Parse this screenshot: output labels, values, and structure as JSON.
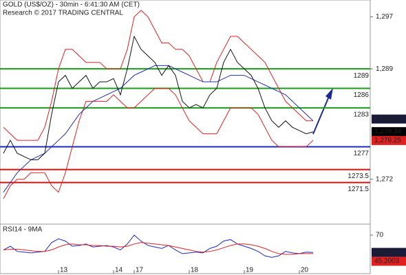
{
  "header": {
    "title": "GOLD (US$/OZ) - 30min - 6:41:30 AM (CET)",
    "subtitle": "Research © 2017 TRADING CENTRAL"
  },
  "chart_data": [
    {
      "type": "line",
      "categories": [
        null,
        null,
        null,
        null,
        null,
        null,
        null,
        null,
        "13",
        null,
        null,
        null,
        null,
        null,
        null,
        null,
        "14",
        null,
        null,
        "17",
        null,
        null,
        null,
        null,
        null,
        null,
        null,
        "18",
        null,
        null,
        null,
        null,
        null,
        null,
        null,
        "19",
        null,
        null,
        null,
        null,
        null,
        null,
        null,
        "20",
        null,
        null
      ],
      "series": [
        {
          "color": "#e02020",
          "values": [
            1280,
            1279,
            1278,
            1278,
            1278,
            1278,
            1280,
            1284,
            1289,
            1292,
            1292,
            1291,
            1290,
            1290,
            1290,
            1289,
            1289,
            1289,
            1292,
            1297,
            1298,
            1297,
            1295,
            1293,
            1293,
            1292,
            1292,
            1291,
            1289,
            1287,
            1287,
            1290,
            1292,
            1294,
            1294,
            1293,
            1292,
            1291,
            1290,
            1288,
            1286,
            1284,
            1283,
            1282,
            1281,
            1281
          ]
        },
        {
          "color": "#e02020",
          "values": [
            1269,
            1271,
            1272,
            1272,
            1273,
            1273,
            1273,
            1271,
            1270,
            1273,
            1277,
            1281,
            1284,
            1284,
            1284,
            1284,
            1285,
            1284,
            1283,
            1283,
            1284,
            1285,
            1286,
            1286,
            1286,
            1285,
            1283,
            1281,
            1280,
            1279,
            1279,
            1279,
            1281,
            1283,
            1283,
            1283,
            1283,
            1282,
            1280,
            1278,
            1277,
            1277,
            1277,
            1277,
            1277,
            1278
          ]
        },
        {
          "color": "#2030b0",
          "values": [
            1270,
            1271.5,
            1273,
            1274,
            1275,
            1275.5,
            1276,
            1277,
            1278,
            1279,
            1280.5,
            1282,
            1283,
            1284,
            1284.5,
            1285,
            1285.5,
            1286,
            1287,
            1288,
            1288.5,
            1289,
            1289.5,
            1289.5,
            1289.5,
            1289,
            1288.5,
            1288,
            1287.5,
            1287,
            1287,
            1287,
            1287.5,
            1288,
            1288,
            1288,
            1287.5,
            1287,
            1286.5,
            1286,
            1285.5,
            1285,
            1284,
            1283,
            1282,
            1281
          ]
        },
        {
          "color": "#111111",
          "values": [
            1276,
            1278,
            1276,
            1275.5,
            1275,
            1275,
            1276,
            1282,
            1287,
            1288,
            1286,
            1287,
            1288,
            1286,
            1287,
            1287,
            1287.5,
            1285,
            1289,
            1294,
            1292,
            1291,
            1290,
            1288,
            1289.5,
            1288,
            1284,
            1283,
            1283.5,
            1283,
            1285,
            1286,
            1290,
            1292,
            1290,
            1289,
            1288,
            1286,
            1283,
            1281,
            1280,
            1281,
            1280,
            1279.5,
            1279,
            1279.3
          ]
        }
      ],
      "ylim": [
        1265.2,
        1299.6
      ],
      "yticks": [
        {
          "value": 1297,
          "label": "1,297"
        },
        {
          "value": 1289,
          "label": "1,289"
        },
        {
          "value": 1272,
          "label": "1,272"
        }
      ],
      "levels": [
        {
          "value": 1289,
          "label": "1289",
          "color": "#1a9a1a"
        },
        {
          "value": 1286,
          "label": "1286",
          "color": "#1a9a1a"
        },
        {
          "value": 1283,
          "label": "1283",
          "color": "#1a9a1a"
        },
        {
          "value": 1277,
          "label": "1277",
          "color": "#1a2ac0"
        },
        {
          "value": 1273.5,
          "label": "1273.5",
          "color": "#d01010"
        },
        {
          "value": 1271.5,
          "label": "1271.5",
          "color": "#d01010"
        }
      ],
      "tags": [
        {
          "value": 1281.27,
          "label": "1,281.27",
          "color": "#1a1a3a"
        },
        {
          "value": 1279.34,
          "label": "1,279.34",
          "color": "#000000"
        },
        {
          "value": 1279.25,
          "label": "1,279.25",
          "color": "#e02020"
        }
      ]
    },
    {
      "type": "line",
      "title": "RSI14 - 9MA",
      "series": [
        {
          "color": "#1a2ac0",
          "values": [
            50,
            55,
            48,
            47,
            46,
            47,
            48,
            60,
            65,
            62,
            55,
            56,
            58,
            54,
            55,
            56,
            54,
            50,
            58,
            70,
            62,
            56,
            54,
            52,
            56,
            50,
            45,
            46,
            47,
            46,
            52,
            55,
            62,
            64,
            58,
            55,
            52,
            48,
            42,
            40,
            42,
            48,
            46,
            45,
            47,
            46.7
          ]
        },
        {
          "color": "#e02020",
          "values": [
            50,
            51,
            51,
            50,
            49,
            48,
            48,
            50,
            54,
            57,
            58,
            57,
            57,
            56,
            56,
            55,
            55,
            54,
            55,
            58,
            60,
            59,
            58,
            57,
            56,
            54,
            52,
            50,
            48,
            47,
            48,
            50,
            53,
            56,
            58,
            58,
            57,
            55,
            52,
            48,
            45,
            44,
            44,
            45,
            45,
            45.2
          ]
        }
      ],
      "ylim": [
        18,
        83
      ],
      "yticks": [
        70
      ],
      "tags": [
        {
          "value": 46.7291,
          "label": "46.7291",
          "color": "#1a1a3a"
        },
        {
          "value": 45.2003,
          "label": "45.2003",
          "color": "#e02020"
        }
      ]
    }
  ]
}
